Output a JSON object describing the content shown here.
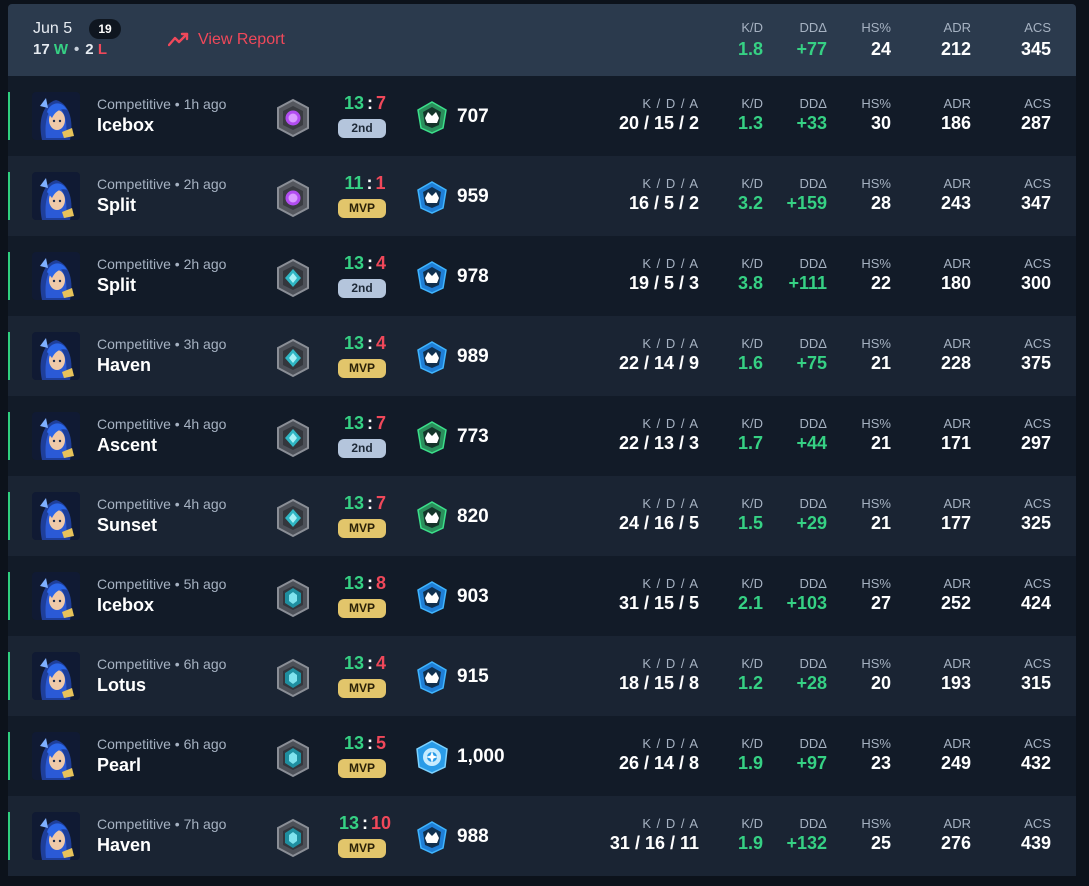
{
  "header": {
    "date": "Jun 5",
    "match_count": "19",
    "wins": "17",
    "win_suffix": "W",
    "losses": "2",
    "loss_suffix": "L",
    "dot": "•",
    "view_report": "View Report",
    "stats": {
      "kd": {
        "label": "K/D",
        "value": "1.8"
      },
      "dd": {
        "label": "DDΔ",
        "value": "+77"
      },
      "hs": {
        "label": "HS%",
        "value": "24"
      },
      "adr": {
        "label": "ADR",
        "value": "212"
      },
      "acs": {
        "label": "ACS",
        "value": "345"
      }
    }
  },
  "labels": {
    "kda": "K / D / A",
    "kd": "K/D",
    "dd": "DDΔ",
    "hs": "HS%",
    "adr": "ADR",
    "acs": "ACS",
    "colon": ":"
  },
  "colors": {
    "win": "#36d184",
    "loss": "#f0485a",
    "header_bg": "#2b3a4d",
    "row_bg": "#121b28",
    "row_alt_bg": "#1a2433",
    "mvp_badge": "#e2c56b",
    "second_badge": "#b4c5dc"
  },
  "matches": [
    {
      "mode": "Competitive • 1h ago",
      "map": "Icebox",
      "rank_icon": "purple-gem-rank-icon",
      "score_team": "13",
      "score_enemy": "7",
      "place": "2nd",
      "tier_icon": "green-crown-icon",
      "rr": "707",
      "kda": "20 / 15 / 2",
      "kd": "1.3",
      "dd": "+33",
      "hs": "30",
      "adr": "186",
      "acs": "287"
    },
    {
      "mode": "Competitive • 2h ago",
      "map": "Split",
      "rank_icon": "purple-gem-rank-icon",
      "score_team": "11",
      "score_enemy": "1",
      "place": "MVP",
      "tier_icon": "blue-crown-icon",
      "rr": "959",
      "kda": "16 / 5 / 2",
      "kd": "3.2",
      "dd": "+159",
      "hs": "28",
      "adr": "243",
      "acs": "347"
    },
    {
      "mode": "Competitive • 2h ago",
      "map": "Split",
      "rank_icon": "teal-diamond-rank-icon",
      "score_team": "13",
      "score_enemy": "4",
      "place": "2nd",
      "tier_icon": "blue-crown-icon",
      "rr": "978",
      "kda": "19 / 5 / 3",
      "kd": "3.8",
      "dd": "+111",
      "hs": "22",
      "adr": "180",
      "acs": "300"
    },
    {
      "mode": "Competitive • 3h ago",
      "map": "Haven",
      "rank_icon": "teal-diamond-rank-icon",
      "score_team": "13",
      "score_enemy": "4",
      "place": "MVP",
      "tier_icon": "blue-crown-icon",
      "rr": "989",
      "kda": "22 / 14 / 9",
      "kd": "1.6",
      "dd": "+75",
      "hs": "21",
      "adr": "228",
      "acs": "375"
    },
    {
      "mode": "Competitive • 4h ago",
      "map": "Ascent",
      "rank_icon": "teal-diamond-rank-icon",
      "score_team": "13",
      "score_enemy": "7",
      "place": "2nd",
      "tier_icon": "green-crown-icon",
      "rr": "773",
      "kda": "22 / 13 / 3",
      "kd": "1.7",
      "dd": "+44",
      "hs": "21",
      "adr": "171",
      "acs": "297"
    },
    {
      "mode": "Competitive • 4h ago",
      "map": "Sunset",
      "rank_icon": "teal-diamond-rank-icon",
      "score_team": "13",
      "score_enemy": "7",
      "place": "MVP",
      "tier_icon": "green-crown-icon",
      "rr": "820",
      "kda": "24 / 16 / 5",
      "kd": "1.5",
      "dd": "+29",
      "hs": "21",
      "adr": "177",
      "acs": "325"
    },
    {
      "mode": "Competitive • 5h ago",
      "map": "Icebox",
      "rank_icon": "teal-hex-rank-icon",
      "score_team": "13",
      "score_enemy": "8",
      "place": "MVP",
      "tier_icon": "blue-crown-icon",
      "rr": "903",
      "kda": "31 / 15 / 5",
      "kd": "2.1",
      "dd": "+103",
      "hs": "27",
      "adr": "252",
      "acs": "424"
    },
    {
      "mode": "Competitive • 6h ago",
      "map": "Lotus",
      "rank_icon": "teal-hex-rank-icon",
      "score_team": "13",
      "score_enemy": "4",
      "place": "MVP",
      "tier_icon": "blue-crown-icon",
      "rr": "915",
      "kda": "18 / 15 / 8",
      "kd": "1.2",
      "dd": "+28",
      "hs": "20",
      "adr": "193",
      "acs": "315"
    },
    {
      "mode": "Competitive • 6h ago",
      "map": "Pearl",
      "rank_icon": "teal-hex-rank-icon",
      "score_team": "13",
      "score_enemy": "5",
      "place": "MVP",
      "tier_icon": "blue-badge-icon",
      "rr": "1,000",
      "kda": "26 / 14 / 8",
      "kd": "1.9",
      "dd": "+97",
      "hs": "23",
      "adr": "249",
      "acs": "432"
    },
    {
      "mode": "Competitive • 7h ago",
      "map": "Haven",
      "rank_icon": "teal-hex-rank-icon",
      "score_team": "13",
      "score_enemy": "10",
      "place": "MVP",
      "tier_icon": "blue-crown-icon",
      "rr": "988",
      "kda": "31 / 16 / 11",
      "kd": "1.9",
      "dd": "+132",
      "hs": "25",
      "adr": "276",
      "acs": "439"
    }
  ]
}
